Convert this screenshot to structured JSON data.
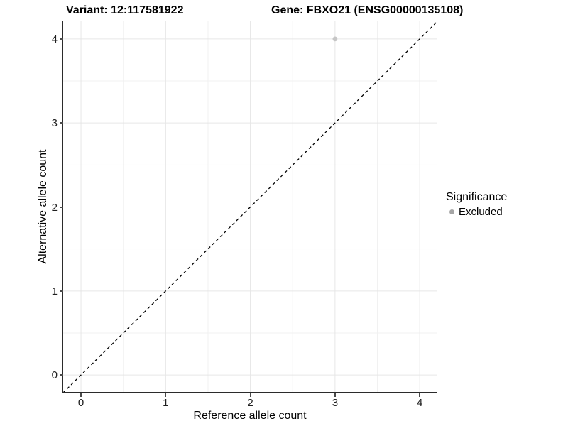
{
  "header": {
    "variant_title": "Variant: 12:117581922",
    "gene_title": "Gene: FBXO21 (ENSG00000135108)"
  },
  "chart_data": {
    "type": "scatter",
    "title": "Variant: 12:117581922  /  Gene: FBXO21 (ENSG00000135108)",
    "xlabel": "Reference allele count",
    "ylabel": "Alternative allele count",
    "xlim": [
      -0.21,
      4.2
    ],
    "ylim": [
      -0.21,
      4.21
    ],
    "x_ticks": [
      0,
      1,
      2,
      3,
      4
    ],
    "y_ticks": [
      0,
      1,
      2,
      3,
      4
    ],
    "grid": {
      "major": true,
      "minor": true,
      "major_color": "#e6e6e6",
      "minor_color": "#f1f1f1"
    },
    "identity_line": {
      "type": "abline",
      "slope": 1,
      "intercept": 0,
      "style": "dashed",
      "color": "#000000"
    },
    "series": [
      {
        "name": "Excluded",
        "color": "#c6c6c6",
        "points": [
          [
            3,
            4
          ]
        ]
      }
    ],
    "legend": {
      "position": "right",
      "title": "Significance",
      "entries": [
        {
          "label": "Excluded",
          "color": "#a6a6a6"
        }
      ]
    }
  }
}
